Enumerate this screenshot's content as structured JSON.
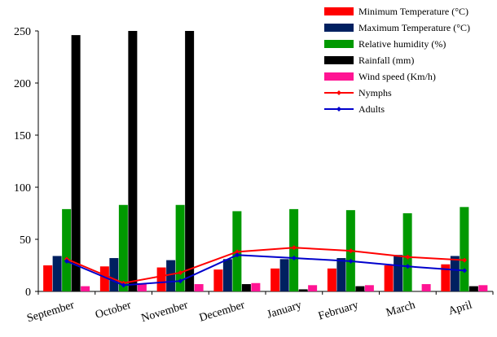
{
  "chart_data": {
    "type": "bar",
    "categories": [
      "September",
      "October",
      "November",
      "December",
      "January",
      "February",
      "March",
      "April"
    ],
    "ylim": [
      0,
      250
    ],
    "yticks": [
      0,
      50,
      100,
      150,
      200,
      250
    ],
    "grid": false,
    "legend_position": "top-right",
    "series": [
      {
        "name": "Minimum Temperature (°C)",
        "type": "bar",
        "color": "#ff0000",
        "values": [
          25,
          24,
          23,
          21,
          22,
          22,
          25,
          26
        ]
      },
      {
        "name": "Maximum Temperature (°C)",
        "type": "bar",
        "color": "#002060",
        "values": [
          34,
          32,
          30,
          31,
          31,
          32,
          35,
          34
        ]
      },
      {
        "name": "Relative humidity (%)",
        "type": "bar",
        "color": "#009900",
        "values": [
          79,
          83,
          83,
          77,
          79,
          78,
          75,
          81
        ]
      },
      {
        "name": "Rainfall (mm)",
        "type": "bar",
        "color": "#000000",
        "values": [
          246,
          250,
          250,
          7,
          2,
          5,
          0,
          5
        ]
      },
      {
        "name": "Wind speed (Km/h)",
        "type": "bar",
        "color": "#ff1493",
        "values": [
          5,
          7,
          7,
          8,
          6,
          6,
          7,
          6
        ]
      },
      {
        "name": "Nymphs",
        "type": "line",
        "color": "#ff0000",
        "values": [
          31,
          8,
          18,
          38,
          42,
          39,
          33,
          30
        ]
      },
      {
        "name": "Adults",
        "type": "line",
        "color": "#0000cc",
        "values": [
          29,
          6,
          10,
          35,
          32,
          29,
          24,
          20
        ]
      }
    ]
  }
}
